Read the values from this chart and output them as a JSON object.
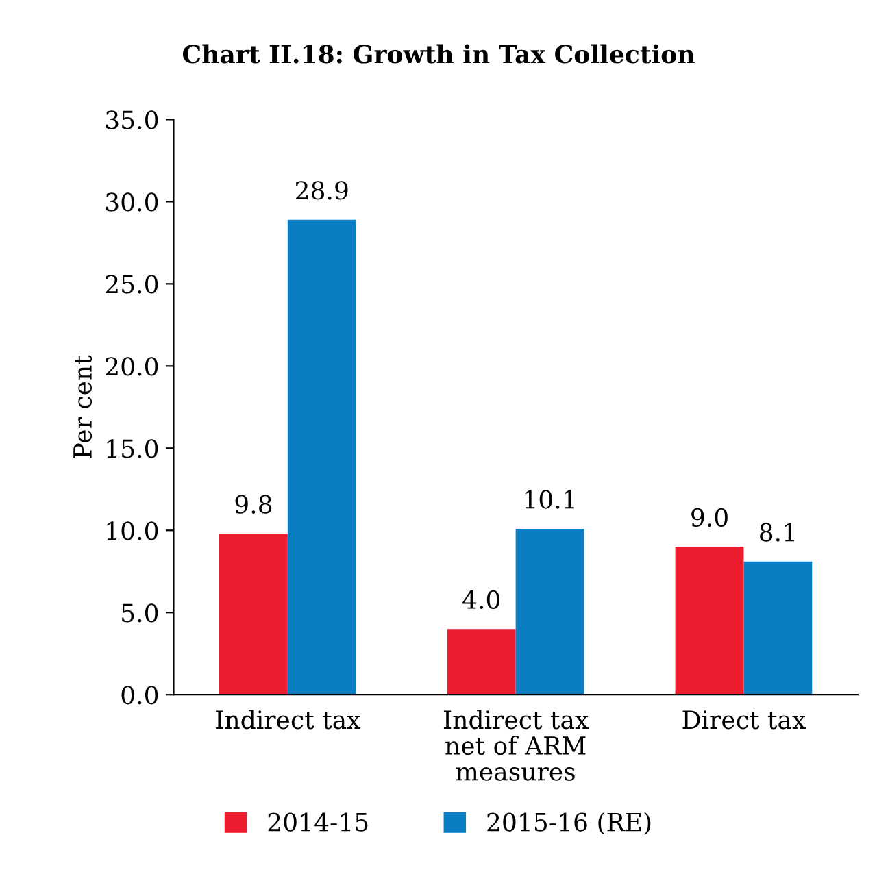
{
  "chart_data": {
    "type": "bar",
    "title": "Chart II.18: Growth in Tax Collection",
    "ylabel": "Per cent",
    "categories": [
      "Indirect tax",
      "Indirect tax\nnet of ARM\nmeasures",
      "Direct tax"
    ],
    "series": [
      {
        "name": "2014-15",
        "color": "#ed1c2e",
        "values": [
          9.8,
          4.0,
          9.0
        ],
        "value_labels": [
          "9.8",
          "4.0",
          "9.0"
        ]
      },
      {
        "name": "2015-16 (RE)",
        "color": "#0b7dc2",
        "values": [
          28.9,
          10.1,
          8.1
        ],
        "value_labels": [
          "28.9",
          "10.1",
          "8.1"
        ]
      }
    ],
    "ylim": [
      0,
      35
    ],
    "yticks": [
      {
        "value": 0,
        "label": "0.0"
      },
      {
        "value": 5,
        "label": "5.0"
      },
      {
        "value": 10,
        "label": "10.0"
      },
      {
        "value": 15,
        "label": "15.0"
      },
      {
        "value": 20,
        "label": "20.0"
      },
      {
        "value": 25,
        "label": "25.0"
      },
      {
        "value": 30,
        "label": "30.0"
      },
      {
        "value": 35,
        "label": "35.0"
      }
    ],
    "grid": false,
    "legend": "bottom"
  }
}
